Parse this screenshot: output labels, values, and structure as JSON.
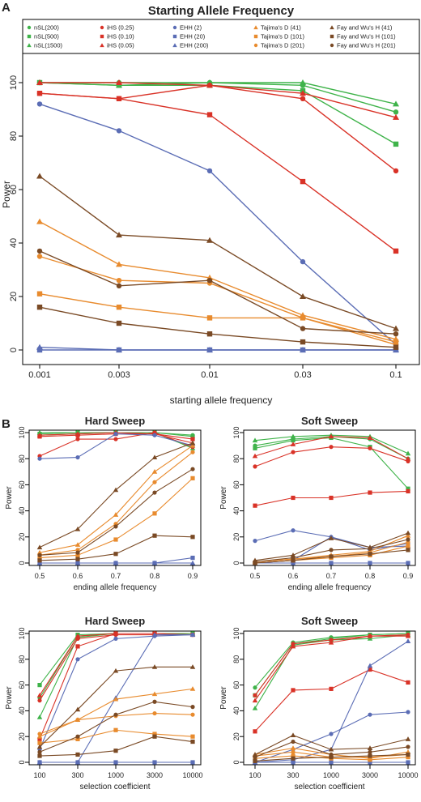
{
  "panel_a": {
    "letter": "A"
  },
  "panel_b": {
    "letter": "B"
  },
  "chart_data": [
    {
      "type": "line",
      "title": "Starting Allele Frequency",
      "xlabel": "starting allele frequency",
      "ylabel": "Power",
      "categories": [
        "0.001",
        "0.003",
        "0.01",
        "0.03",
        "0.1"
      ],
      "ylim": [
        0,
        110
      ],
      "yticks": [
        0,
        20,
        40,
        60,
        80,
        100
      ],
      "legend_position": "top",
      "series": [
        {
          "name": "nSL(200)",
          "color": "#3fb34a",
          "marker": "circle",
          "values": [
            100,
            100,
            100,
            99,
            89
          ]
        },
        {
          "name": "nSL(500)",
          "color": "#3fb34a",
          "marker": "square",
          "values": [
            100,
            99,
            99,
            97,
            77
          ]
        },
        {
          "name": "nSL(1500)",
          "color": "#3fb34a",
          "marker": "triangle",
          "values": [
            100,
            99,
            100,
            100,
            92
          ]
        },
        {
          "name": "iHS (0.25)",
          "color": "#d93227",
          "marker": "circle",
          "values": [
            96,
            94,
            99,
            94,
            67
          ]
        },
        {
          "name": "iHS (0.10)",
          "color": "#d93227",
          "marker": "square",
          "values": [
            96,
            94,
            88,
            63,
            37
          ]
        },
        {
          "name": "iHS (0.05)",
          "color": "#d93227",
          "marker": "triangle",
          "values": [
            100,
            100,
            99,
            96,
            87
          ]
        },
        {
          "name": "EHH (2)",
          "color": "#5b6db5",
          "marker": "circle",
          "values": [
            92,
            82,
            67,
            33,
            2
          ]
        },
        {
          "name": "EHH (20)",
          "color": "#5b6db5",
          "marker": "square",
          "values": [
            0,
            0,
            0,
            0,
            0
          ]
        },
        {
          "name": "EHH (200)",
          "color": "#5b6db5",
          "marker": "triangle",
          "values": [
            1,
            0,
            0,
            0,
            0
          ]
        },
        {
          "name": "Tajima's D (41)",
          "color": "#e88b2e",
          "marker": "triangle",
          "values": [
            48,
            32,
            27,
            13,
            4
          ]
        },
        {
          "name": "Tajima's D (101)",
          "color": "#e88b2e",
          "marker": "square",
          "values": [
            21,
            16,
            12,
            12,
            3
          ]
        },
        {
          "name": "Tajima's D (201)",
          "color": "#e88b2e",
          "marker": "circle",
          "values": [
            35,
            26,
            25,
            12,
            2
          ]
        },
        {
          "name": "Fay and Wu's H (41)",
          "color": "#7a4a25",
          "marker": "triangle",
          "values": [
            65,
            43,
            41,
            20,
            8
          ]
        },
        {
          "name": "Fay and Wu's H (101)",
          "color": "#7a4a25",
          "marker": "square",
          "values": [
            16,
            10,
            6,
            3,
            1
          ]
        },
        {
          "name": "Fay and Wu's H (201)",
          "color": "#7a4a25",
          "marker": "circle",
          "values": [
            37,
            24,
            26,
            8,
            6
          ]
        }
      ]
    },
    {
      "type": "line",
      "title": "Hard Sweep",
      "xlabel": "ending allele frequency",
      "ylabel": "Power",
      "categories": [
        "0.5",
        "0.6",
        "0.7",
        "0.8",
        "0.9"
      ],
      "ylim": [
        0,
        100
      ],
      "yticks": [
        0,
        20,
        40,
        60,
        80,
        100
      ],
      "series": [
        {
          "color": "#3fb34a",
          "marker": "circle",
          "values": [
            98,
            99,
            100,
            100,
            98
          ]
        },
        {
          "color": "#3fb34a",
          "marker": "square",
          "values": [
            99,
            100,
            100,
            100,
            97
          ]
        },
        {
          "color": "#3fb34a",
          "marker": "triangle",
          "values": [
            100,
            100,
            100,
            100,
            88
          ]
        },
        {
          "color": "#d93227",
          "marker": "circle",
          "values": [
            82,
            95,
            95,
            100,
            89
          ]
        },
        {
          "color": "#d93227",
          "marker": "square",
          "values": [
            97,
            98,
            99,
            99,
            95
          ]
        },
        {
          "color": "#d93227",
          "marker": "triangle",
          "values": [
            98,
            99,
            100,
            99,
            92
          ]
        },
        {
          "color": "#5b6db5",
          "marker": "circle",
          "values": [
            80,
            81,
            99,
            98,
            90
          ]
        },
        {
          "color": "#5b6db5",
          "marker": "square",
          "values": [
            0,
            0,
            0,
            0,
            4
          ]
        },
        {
          "color": "#5b6db5",
          "marker": "triangle",
          "values": [
            0,
            0,
            0,
            0,
            0
          ]
        },
        {
          "color": "#e88b2e",
          "marker": "triangle",
          "values": [
            8,
            14,
            37,
            70,
            90
          ]
        },
        {
          "color": "#e88b2e",
          "marker": "square",
          "values": [
            4,
            6,
            18,
            38,
            65
          ]
        },
        {
          "color": "#e88b2e",
          "marker": "circle",
          "values": [
            6,
            10,
            30,
            62,
            85
          ]
        },
        {
          "color": "#7a4a25",
          "marker": "triangle",
          "values": [
            12,
            26,
            56,
            81,
            92
          ]
        },
        {
          "color": "#7a4a25",
          "marker": "square",
          "values": [
            2,
            3,
            7,
            21,
            20
          ]
        },
        {
          "color": "#7a4a25",
          "marker": "circle",
          "values": [
            6,
            8,
            28,
            54,
            72
          ]
        }
      ]
    },
    {
      "type": "line",
      "title": "Soft Sweep",
      "xlabel": "ending allele frequency",
      "ylabel": "Power",
      "categories": [
        "0.5",
        "0.6",
        "0.7",
        "0.8",
        "0.9"
      ],
      "ylim": [
        0,
        100
      ],
      "yticks": [
        0,
        20,
        40,
        60,
        80,
        100
      ],
      "series": [
        {
          "color": "#3fb34a",
          "marker": "circle",
          "values": [
            90,
            95,
            97,
            95,
            80
          ]
        },
        {
          "color": "#3fb34a",
          "marker": "square",
          "values": [
            88,
            94,
            96,
            89,
            57
          ]
        },
        {
          "color": "#3fb34a",
          "marker": "triangle",
          "values": [
            94,
            97,
            98,
            97,
            84
          ]
        },
        {
          "color": "#d93227",
          "marker": "circle",
          "values": [
            74,
            85,
            89,
            88,
            78
          ]
        },
        {
          "color": "#d93227",
          "marker": "square",
          "values": [
            44,
            50,
            50,
            54,
            55
          ]
        },
        {
          "color": "#d93227",
          "marker": "triangle",
          "values": [
            82,
            91,
            97,
            96,
            80
          ]
        },
        {
          "color": "#5b6db5",
          "marker": "circle",
          "values": [
            17,
            25,
            20,
            10,
            15
          ]
        },
        {
          "color": "#5b6db5",
          "marker": "square",
          "values": [
            0,
            0,
            0,
            0,
            0
          ]
        },
        {
          "color": "#5b6db5",
          "marker": "triangle",
          "values": [
            0,
            2,
            20,
            12,
            13
          ]
        },
        {
          "color": "#e88b2e",
          "marker": "triangle",
          "values": [
            1,
            3,
            6,
            9,
            21
          ]
        },
        {
          "color": "#e88b2e",
          "marker": "square",
          "values": [
            0,
            2,
            4,
            6,
            13
          ]
        },
        {
          "color": "#e88b2e",
          "marker": "circle",
          "values": [
            1,
            3,
            5,
            8,
            16
          ]
        },
        {
          "color": "#7a4a25",
          "marker": "triangle",
          "values": [
            2,
            6,
            19,
            12,
            23
          ]
        },
        {
          "color": "#7a4a25",
          "marker": "square",
          "values": [
            0,
            2,
            5,
            7,
            10
          ]
        },
        {
          "color": "#7a4a25",
          "marker": "circle",
          "values": [
            1,
            4,
            10,
            11,
            18
          ]
        }
      ]
    },
    {
      "type": "line",
      "title": "Hard Sweep",
      "xlabel": "selection coefficient",
      "ylabel": "Power",
      "categories": [
        "100",
        "300",
        "1000",
        "3000",
        "10000"
      ],
      "ylim": [
        0,
        100
      ],
      "yticks": [
        0,
        20,
        40,
        60,
        80,
        100
      ],
      "series": [
        {
          "color": "#3fb34a",
          "marker": "circle",
          "values": [
            50,
            98,
            100,
            100,
            100
          ]
        },
        {
          "color": "#3fb34a",
          "marker": "square",
          "values": [
            60,
            99,
            100,
            100,
            100
          ]
        },
        {
          "color": "#3fb34a",
          "marker": "triangle",
          "values": [
            35,
            97,
            100,
            100,
            100
          ]
        },
        {
          "color": "#d93227",
          "marker": "circle",
          "values": [
            48,
            96,
            99,
            99,
            99
          ]
        },
        {
          "color": "#d93227",
          "marker": "square",
          "values": [
            18,
            90,
            100,
            100,
            99
          ]
        },
        {
          "color": "#d93227",
          "marker": "triangle",
          "values": [
            52,
            98,
            100,
            100,
            99
          ]
        },
        {
          "color": "#5b6db5",
          "marker": "circle",
          "values": [
            10,
            80,
            96,
            98,
            99
          ]
        },
        {
          "color": "#5b6db5",
          "marker": "square",
          "values": [
            0,
            0,
            0,
            0,
            0
          ]
        },
        {
          "color": "#5b6db5",
          "marker": "triangle",
          "values": [
            0,
            0,
            50,
            99,
            99
          ]
        },
        {
          "color": "#e88b2e",
          "marker": "triangle",
          "values": [
            20,
            33,
            49,
            53,
            57
          ]
        },
        {
          "color": "#e88b2e",
          "marker": "square",
          "values": [
            15,
            18,
            25,
            22,
            20
          ]
        },
        {
          "color": "#e88b2e",
          "marker": "circle",
          "values": [
            22,
            33,
            36,
            38,
            37
          ]
        },
        {
          "color": "#7a4a25",
          "marker": "triangle",
          "values": [
            12,
            41,
            71,
            74,
            74
          ]
        },
        {
          "color": "#7a4a25",
          "marker": "square",
          "values": [
            5,
            6,
            9,
            20,
            16
          ]
        },
        {
          "color": "#7a4a25",
          "marker": "circle",
          "values": [
            8,
            20,
            37,
            47,
            43
          ]
        }
      ]
    },
    {
      "type": "line",
      "title": "Soft Sweep",
      "xlabel": "selection coefficient",
      "ylabel": "Power",
      "categories": [
        "100",
        "300",
        "1000",
        "3000",
        "10000"
      ],
      "ylim": [
        0,
        100
      ],
      "yticks": [
        0,
        20,
        40,
        60,
        80,
        100
      ],
      "series": [
        {
          "color": "#3fb34a",
          "marker": "circle",
          "values": [
            58,
            93,
            97,
            99,
            100
          ]
        },
        {
          "color": "#3fb34a",
          "marker": "square",
          "values": [
            52,
            92,
            96,
            99,
            100
          ]
        },
        {
          "color": "#3fb34a",
          "marker": "triangle",
          "values": [
            42,
            91,
            95,
            96,
            99
          ]
        },
        {
          "color": "#d93227",
          "marker": "circle",
          "values": [
            52,
            92,
            95,
            98,
            99
          ]
        },
        {
          "color": "#d93227",
          "marker": "square",
          "values": [
            24,
            56,
            57,
            72,
            62
          ]
        },
        {
          "color": "#d93227",
          "marker": "triangle",
          "values": [
            48,
            90,
            93,
            98,
            98
          ]
        },
        {
          "color": "#5b6db5",
          "marker": "circle",
          "values": [
            0,
            10,
            22,
            37,
            39
          ]
        },
        {
          "color": "#5b6db5",
          "marker": "square",
          "values": [
            0,
            0,
            0,
            0,
            0
          ]
        },
        {
          "color": "#5b6db5",
          "marker": "triangle",
          "values": [
            0,
            2,
            10,
            75,
            94
          ]
        },
        {
          "color": "#e88b2e",
          "marker": "triangle",
          "values": [
            6,
            11,
            6,
            3,
            8
          ]
        },
        {
          "color": "#e88b2e",
          "marker": "square",
          "values": [
            3,
            5,
            3,
            2,
            4
          ]
        },
        {
          "color": "#e88b2e",
          "marker": "circle",
          "values": [
            5,
            8,
            4,
            4,
            6
          ]
        },
        {
          "color": "#7a4a25",
          "marker": "triangle",
          "values": [
            6,
            21,
            10,
            11,
            18
          ]
        },
        {
          "color": "#7a4a25",
          "marker": "square",
          "values": [
            1,
            3,
            4,
            5,
            6
          ]
        },
        {
          "color": "#7a4a25",
          "marker": "circle",
          "values": [
            4,
            16,
            6,
            8,
            12
          ]
        }
      ]
    }
  ]
}
